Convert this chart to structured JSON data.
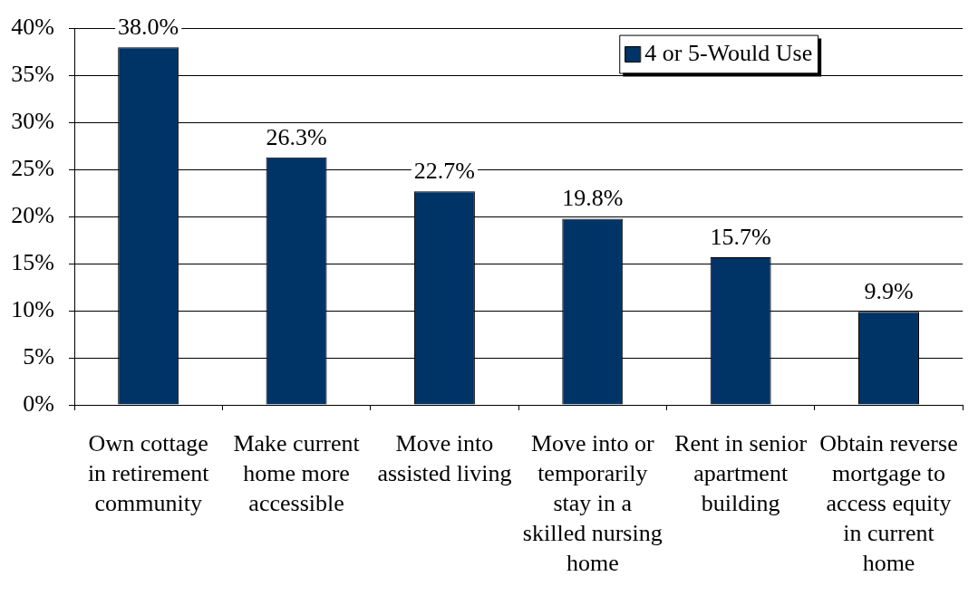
{
  "chart_data": {
    "type": "bar",
    "categories": [
      "Own cottage in retirement community",
      "Make current home more accessible",
      "Move into assisted living",
      "Move into or temporarily stay in a skilled nursing home",
      "Rent in senior apartment building",
      "Obtain reverse mortgage to access equity in current home"
    ],
    "series": [
      {
        "name": "4 or 5-Would Use",
        "color": "#003366",
        "values": [
          38.0,
          26.3,
          22.7,
          19.8,
          15.7,
          9.9
        ],
        "value_labels": [
          "38.0%",
          "26.3%",
          "22.7%",
          "19.8%",
          "15.7%",
          "9.9%"
        ]
      }
    ],
    "ylim": [
      0,
      40
    ],
    "yticks": [
      {
        "value": 0,
        "label": "0%"
      },
      {
        "value": 5,
        "label": "5%"
      },
      {
        "value": 10,
        "label": "10%"
      },
      {
        "value": 15,
        "label": "15%"
      },
      {
        "value": 20,
        "label": "20%"
      },
      {
        "value": 25,
        "label": "25%"
      },
      {
        "value": 30,
        "label": "30%"
      },
      {
        "value": 35,
        "label": "35%"
      },
      {
        "value": 40,
        "label": "40%"
      }
    ],
    "grid": "y",
    "legend": "top right"
  }
}
